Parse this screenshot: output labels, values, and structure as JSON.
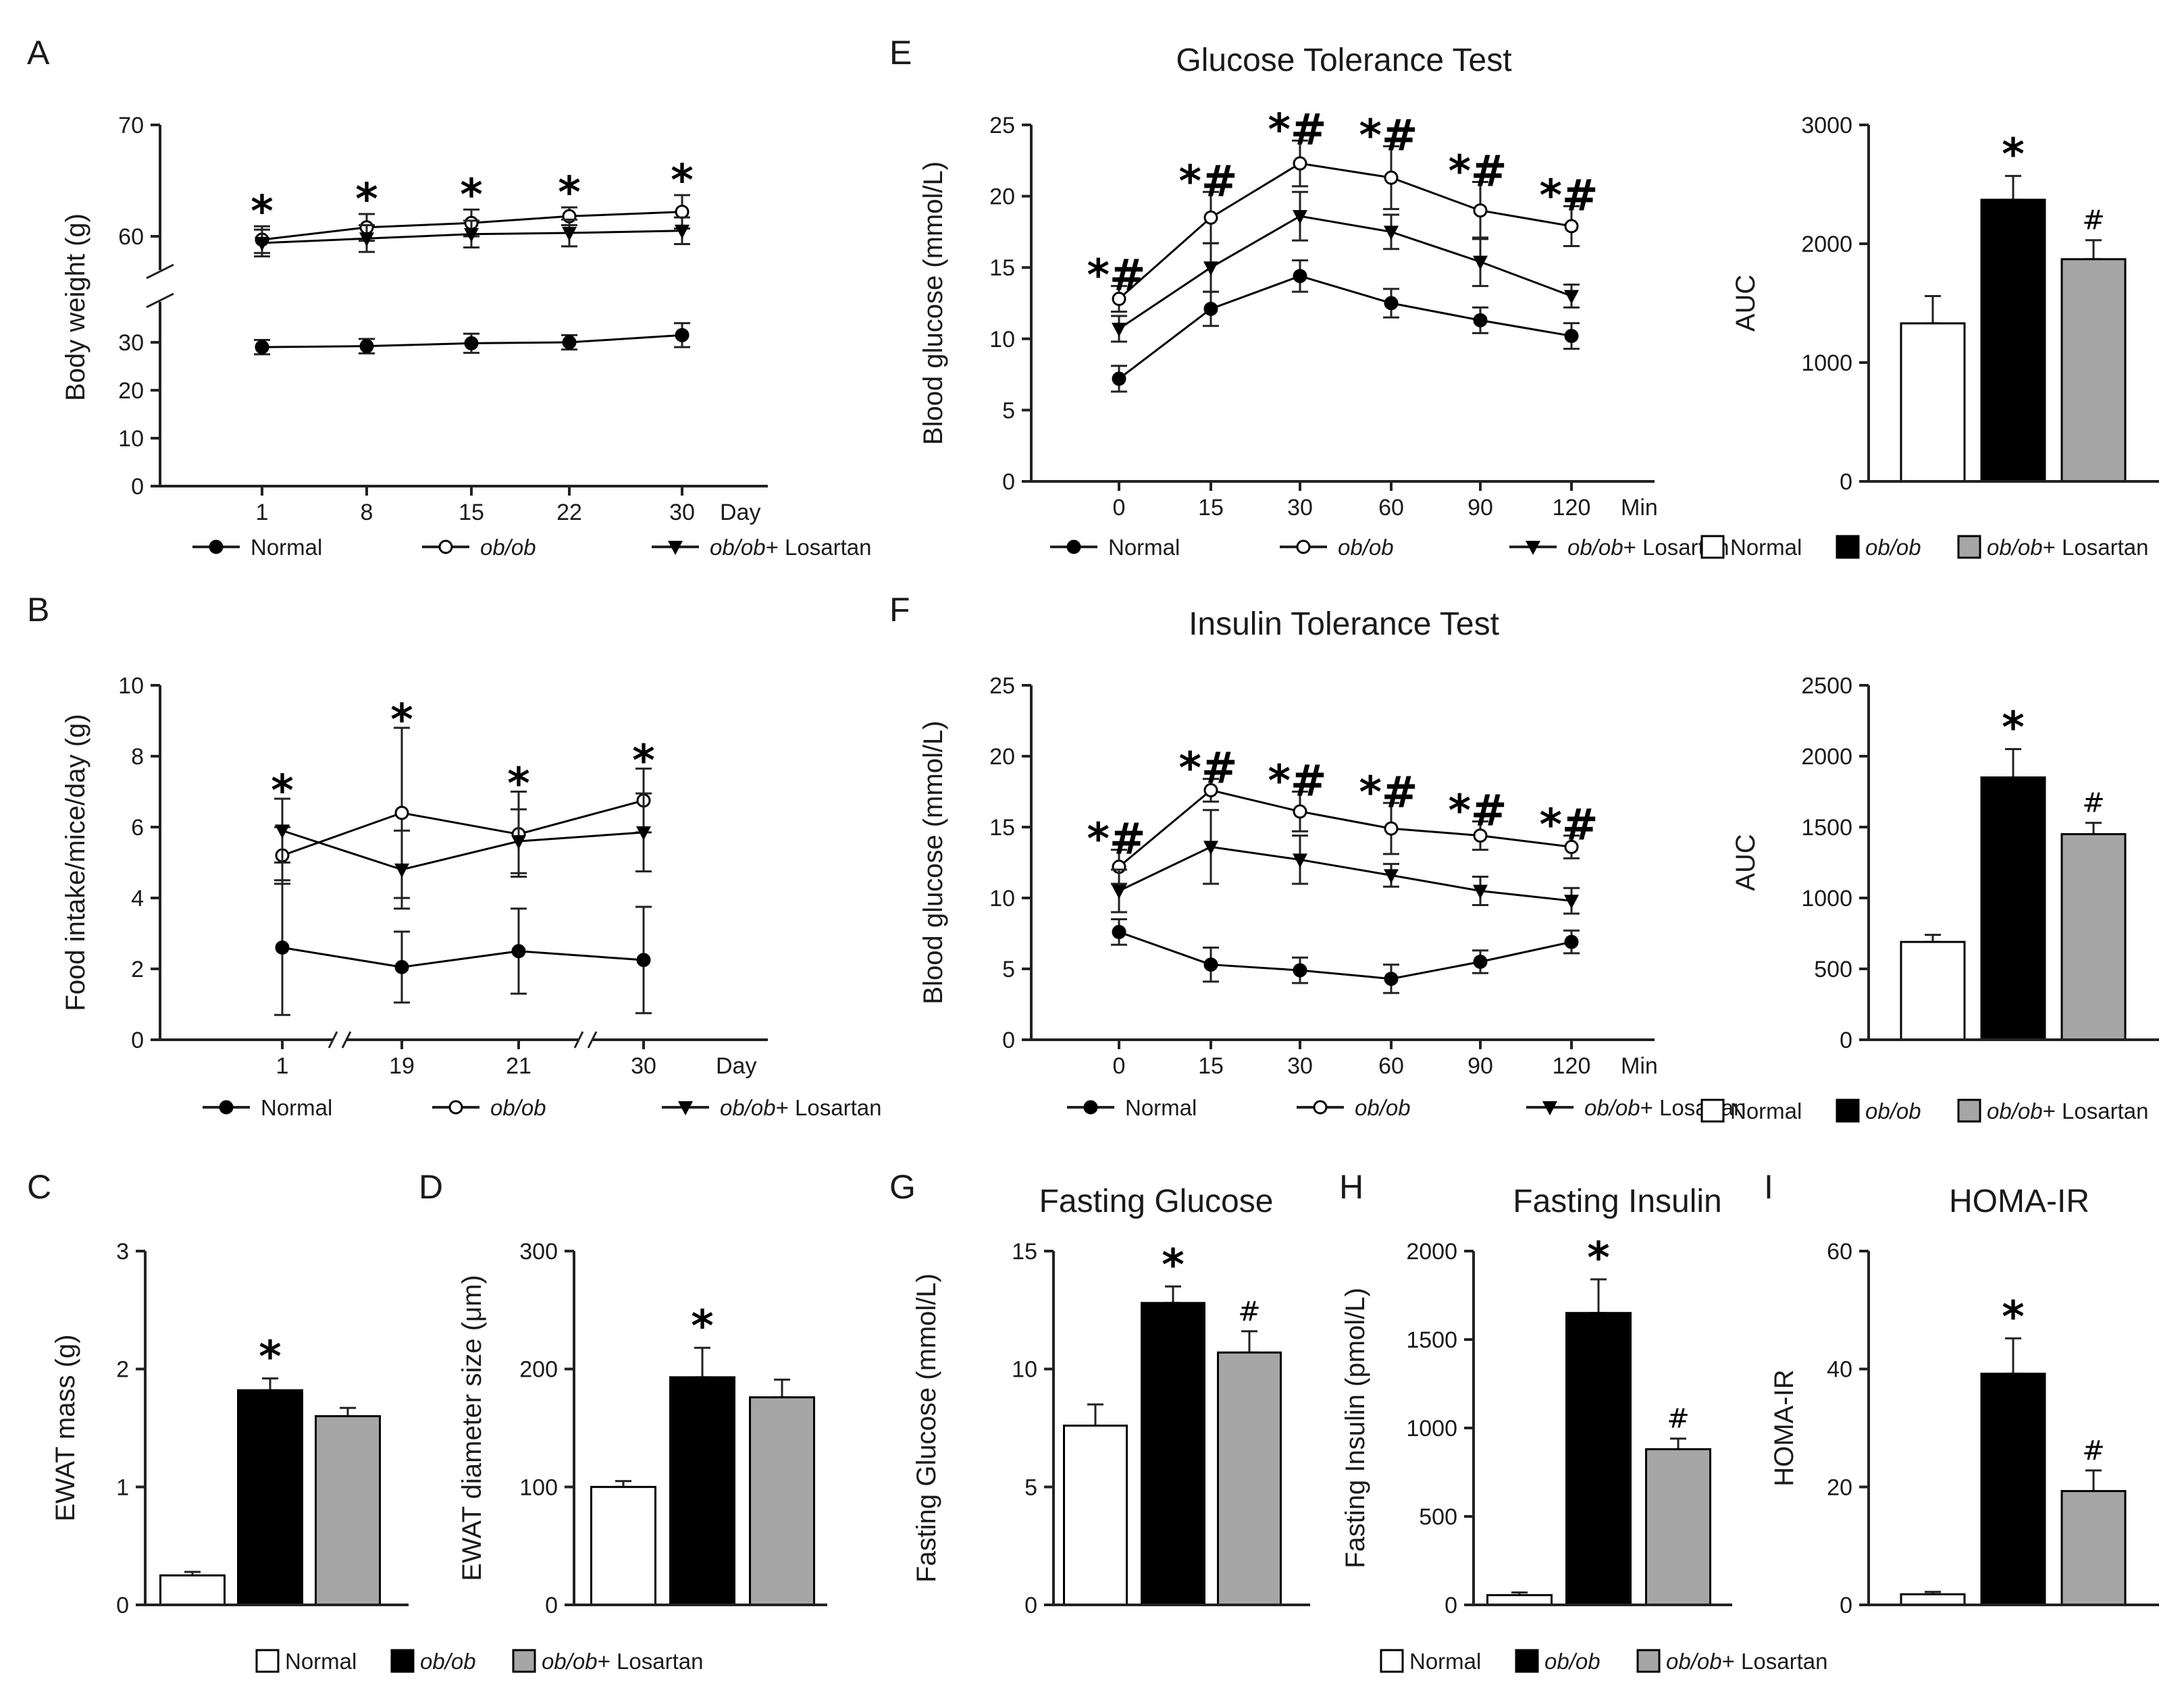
{
  "chart_data": [
    {
      "id": "A",
      "letter": "A",
      "type": "line",
      "title": "",
      "xlabel": "",
      "xunit": "Day",
      "ylabel": "Body weight (g)",
      "x": [
        "1",
        "8",
        "15",
        "22",
        "30"
      ],
      "yticks_low": [
        0,
        10,
        20,
        30
      ],
      "yticks_high": [
        60,
        70
      ],
      "series": [
        {
          "name": "Normal",
          "marker": "filled-circle",
          "values": [
            29,
            29.2,
            29.8,
            30,
            31.5
          ],
          "errors": [
            1.5,
            1.5,
            2,
            1.5,
            2.5
          ]
        },
        {
          "name": "ob/ob",
          "marker": "open-circle",
          "values": [
            59.7,
            60.8,
            61.2,
            61.8,
            62.2
          ],
          "errors": [
            1.2,
            1.2,
            1.2,
            0.8,
            1.5
          ]
        },
        {
          "name": "ob/ob+ Losartan",
          "marker": "triangle-down",
          "values": [
            59.4,
            59.8,
            60.2,
            60.3,
            60.5
          ],
          "errors": [
            1.2,
            1.2,
            1.2,
            1.2,
            1.2
          ]
        }
      ],
      "annotations": [
        {
          "x": "1",
          "text": "*"
        },
        {
          "x": "8",
          "text": "*"
        },
        {
          "x": "15",
          "text": "*"
        },
        {
          "x": "22",
          "text": "*"
        },
        {
          "x": "30",
          "text": "*"
        }
      ]
    },
    {
      "id": "B",
      "letter": "B",
      "type": "line",
      "title": "",
      "xlabel": "",
      "xunit": "Day",
      "ylabel": "Food intake/mice/day (g)",
      "x": [
        "1",
        "19",
        "21",
        "30"
      ],
      "ylim": [
        0,
        10
      ],
      "yticks": [
        0,
        2,
        4,
        6,
        8,
        10
      ],
      "series": [
        {
          "name": "Normal",
          "marker": "filled-circle",
          "values": [
            2.6,
            2.05,
            2.5,
            2.25
          ],
          "errors": [
            1.9,
            1.0,
            1.2,
            1.5
          ]
        },
        {
          "name": "ob/ob",
          "marker": "open-circle",
          "values": [
            5.2,
            6.4,
            5.8,
            6.75
          ],
          "errors": [
            0.8,
            2.4,
            1.2,
            0.9
          ]
        },
        {
          "name": "ob/ob+ Losartan",
          "marker": "triangle-down",
          "values": [
            5.9,
            4.8,
            5.6,
            5.85
          ],
          "errors": [
            0.9,
            1.1,
            0.9,
            1.1
          ]
        }
      ],
      "annotations": [
        {
          "x": "1",
          "text": "*"
        },
        {
          "x": "19",
          "text": "*"
        },
        {
          "x": "21",
          "text": "*"
        },
        {
          "x": "30",
          "text": "*"
        }
      ]
    },
    {
      "id": "C",
      "letter": "C",
      "type": "bar",
      "title": "",
      "ylabel": "EWAT mass (g)",
      "categories": [
        "Normal",
        "ob/ob",
        "ob/ob+ Losartan"
      ],
      "values": [
        0.25,
        1.82,
        1.6
      ],
      "errors": [
        0.03,
        0.1,
        0.07
      ],
      "ylim": [
        0,
        3
      ],
      "yticks": [
        0,
        1,
        2,
        3
      ],
      "annotations": [
        "",
        "*",
        ""
      ]
    },
    {
      "id": "D",
      "letter": "D",
      "type": "bar",
      "title": "",
      "ylabel": "EWAT diameter size (μm)",
      "categories": [
        "Normal",
        "ob/ob",
        "ob/ob+ Losartan"
      ],
      "values": [
        100,
        193,
        176
      ],
      "errors": [
        5,
        25,
        15
      ],
      "ylim": [
        0,
        300
      ],
      "yticks": [
        0,
        100,
        200,
        300
      ],
      "annotations": [
        "",
        "*",
        ""
      ]
    },
    {
      "id": "E",
      "letter": "E",
      "type": "line",
      "title": "Glucose Tolerance Test",
      "xlabel": "",
      "xunit": "Min",
      "ylabel": "Blood glucose (mmol/L)",
      "x": [
        "0",
        "15",
        "30",
        "60",
        "90",
        "120"
      ],
      "ylim": [
        0,
        25
      ],
      "yticks": [
        0,
        5,
        10,
        15,
        20,
        25
      ],
      "series": [
        {
          "name": "Normal",
          "marker": "filled-circle",
          "values": [
            7.2,
            12.1,
            14.4,
            12.5,
            11.3,
            10.2
          ],
          "errors": [
            0.9,
            1.2,
            1.1,
            1.0,
            0.9,
            0.9
          ]
        },
        {
          "name": "ob/ob",
          "marker": "open-circle",
          "values": [
            12.8,
            18.5,
            22.3,
            21.3,
            19.0,
            17.9
          ],
          "errors": [
            0.9,
            1.8,
            1.6,
            2.2,
            2.0,
            1.4
          ]
        },
        {
          "name": "ob/ob+ Losartan",
          "marker": "triangle-down",
          "values": [
            10.7,
            15.0,
            18.6,
            17.5,
            15.4,
            13.0
          ],
          "errors": [
            0.9,
            1.7,
            1.7,
            1.2,
            1.7,
            0.8
          ]
        }
      ],
      "annotations": [
        {
          "x": "0",
          "text": "*#"
        },
        {
          "x": "15",
          "text": "*#"
        },
        {
          "x": "30",
          "text": "*#"
        },
        {
          "x": "60",
          "text": "*#"
        },
        {
          "x": "90",
          "text": "*#"
        },
        {
          "x": "120",
          "text": "*#"
        }
      ]
    },
    {
      "id": "E2",
      "letter": "",
      "type": "bar",
      "title": "",
      "ylabel": "AUC",
      "categories": [
        "Normal",
        "ob/ob",
        "ob/ob+ Losartan"
      ],
      "values": [
        1330,
        2370,
        1870
      ],
      "errors": [
        230,
        200,
        160
      ],
      "ylim": [
        0,
        3000
      ],
      "yticks": [
        0,
        1000,
        2000,
        3000
      ],
      "annotations": [
        "",
        "*",
        "#"
      ]
    },
    {
      "id": "F",
      "letter": "F",
      "type": "line",
      "title": "Insulin Tolerance Test",
      "xlabel": "",
      "xunit": "Min",
      "ylabel": "Blood glucose (mmol/L)",
      "x": [
        "0",
        "15",
        "30",
        "60",
        "90",
        "120"
      ],
      "ylim": [
        0,
        25
      ],
      "yticks": [
        0,
        5,
        10,
        15,
        20,
        25
      ],
      "series": [
        {
          "name": "Normal",
          "marker": "filled-circle",
          "values": [
            7.6,
            5.3,
            4.9,
            4.3,
            5.5,
            6.9
          ],
          "errors": [
            0.9,
            1.2,
            0.9,
            1.0,
            0.8,
            0.8
          ]
        },
        {
          "name": "ob/ob",
          "marker": "open-circle",
          "values": [
            12.2,
            17.6,
            16.1,
            14.9,
            14.4,
            13.6
          ],
          "errors": [
            1.2,
            0.8,
            1.4,
            1.8,
            1.0,
            0.8
          ]
        },
        {
          "name": "ob/ob+ Losartan",
          "marker": "triangle-down",
          "values": [
            10.5,
            13.6,
            12.7,
            11.6,
            10.5,
            9.8
          ],
          "errors": [
            1.5,
            2.6,
            1.7,
            0.8,
            1.0,
            0.9
          ]
        }
      ],
      "annotations": [
        {
          "x": "0",
          "text": "*#"
        },
        {
          "x": "15",
          "text": "*#"
        },
        {
          "x": "30",
          "text": "*#"
        },
        {
          "x": "60",
          "text": "*#"
        },
        {
          "x": "90",
          "text": "*#"
        },
        {
          "x": "120",
          "text": "*#"
        }
      ]
    },
    {
      "id": "F2",
      "letter": "",
      "type": "bar",
      "title": "",
      "ylabel": "AUC",
      "categories": [
        "Normal",
        "ob/ob",
        "ob/ob+ Losartan"
      ],
      "values": [
        690,
        1850,
        1450
      ],
      "errors": [
        50,
        200,
        80
      ],
      "ylim": [
        0,
        2500
      ],
      "yticks": [
        0,
        500,
        1000,
        1500,
        2000,
        2500
      ],
      "annotations": [
        "",
        "*",
        "#"
      ]
    },
    {
      "id": "G",
      "letter": "G",
      "type": "bar",
      "title": "Fasting Glucose",
      "ylabel": "Fasting Glucose (mmol/L)",
      "categories": [
        "Normal",
        "ob/ob",
        "ob/ob+ Losartan"
      ],
      "values": [
        7.6,
        12.8,
        10.7
      ],
      "errors": [
        0.9,
        0.7,
        0.9
      ],
      "ylim": [
        0,
        15
      ],
      "yticks": [
        0,
        5,
        10,
        15
      ],
      "annotations": [
        "",
        "*",
        "#"
      ]
    },
    {
      "id": "H",
      "letter": "H",
      "type": "bar",
      "title": "Fasting Insulin",
      "ylabel": "Fasting Insulin (pmol/L)",
      "categories": [
        "Normal",
        "ob/ob",
        "ob/ob+ Losartan"
      ],
      "values": [
        55,
        1650,
        880
      ],
      "errors": [
        15,
        190,
        60
      ],
      "ylim": [
        0,
        2000
      ],
      "yticks": [
        0,
        500,
        1000,
        1500,
        2000
      ],
      "annotations": [
        "",
        "*",
        "#"
      ]
    },
    {
      "id": "I",
      "letter": "I",
      "type": "bar",
      "title": "HOMA-IR",
      "ylabel": "HOMA-IR",
      "categories": [
        "Normal",
        "ob/ob",
        "ob/ob+ Losartan"
      ],
      "values": [
        1.8,
        39.2,
        19.3
      ],
      "errors": [
        0.4,
        6,
        3.5
      ],
      "ylim": [
        0,
        60
      ],
      "yticks": [
        0,
        20,
        40,
        60
      ],
      "annotations": [
        "",
        "*",
        "#"
      ]
    }
  ],
  "legend": {
    "normal": "Normal",
    "obob": "ob/ob",
    "losartan_prefix": "ob/ob",
    "losartan_suffix": "+ Losartan"
  },
  "colors": {
    "normal_bar": "#ffffff",
    "obob_bar": "#000000",
    "losartan_bar": "#a6a6a6",
    "axis": "#222222"
  }
}
